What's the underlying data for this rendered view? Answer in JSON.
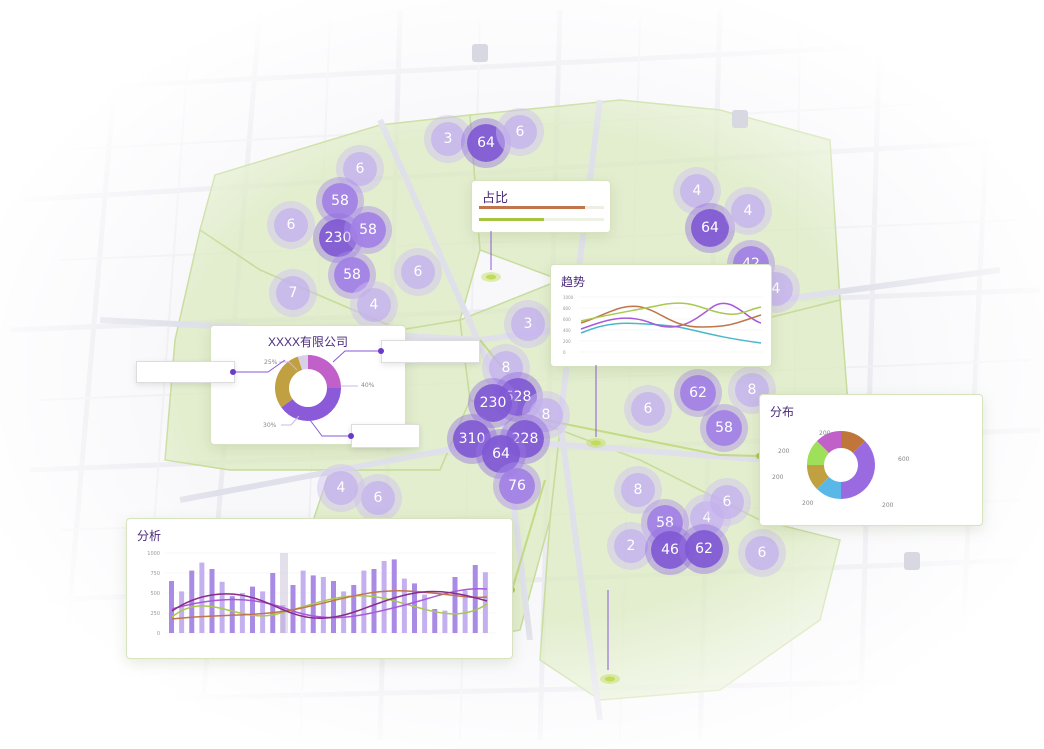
{
  "map": {
    "clusters": [
      {
        "label": "3",
        "size": "sm"
      },
      {
        "label": "64",
        "size": "lg"
      },
      {
        "label": "6",
        "size": "sm"
      },
      {
        "label": "6",
        "size": "sm"
      },
      {
        "label": "58",
        "size": "md"
      },
      {
        "label": "6",
        "size": "sm"
      },
      {
        "label": "230",
        "size": "lg"
      },
      {
        "label": "58",
        "size": "md"
      },
      {
        "label": "58",
        "size": "md"
      },
      {
        "label": "6",
        "size": "sm"
      },
      {
        "label": "7",
        "size": "sm"
      },
      {
        "label": "4",
        "size": "sm"
      },
      {
        "label": "4",
        "size": "sm"
      },
      {
        "label": "64",
        "size": "lg"
      },
      {
        "label": "4",
        "size": "sm"
      },
      {
        "label": "42",
        "size": "md"
      },
      {
        "label": "4",
        "size": "sm"
      },
      {
        "label": "3",
        "size": "sm"
      },
      {
        "label": "8",
        "size": "sm"
      },
      {
        "label": "628",
        "size": "lg"
      },
      {
        "label": "230",
        "size": "lg"
      },
      {
        "label": "8",
        "size": "sm"
      },
      {
        "label": "310",
        "size": "lg"
      },
      {
        "label": "228",
        "size": "lg"
      },
      {
        "label": "64",
        "size": "lg"
      },
      {
        "label": "76",
        "size": "md"
      },
      {
        "label": "62",
        "size": "md"
      },
      {
        "label": "8",
        "size": "sm"
      },
      {
        "label": "6",
        "size": "sm"
      },
      {
        "label": "58",
        "size": "md"
      },
      {
        "label": "4",
        "size": "sm"
      },
      {
        "label": "6",
        "size": "sm"
      },
      {
        "label": "8",
        "size": "sm"
      },
      {
        "label": "6",
        "size": "sm"
      },
      {
        "label": "4",
        "size": "sm"
      },
      {
        "label": "58",
        "size": "md"
      },
      {
        "label": "2",
        "size": "sm"
      },
      {
        "label": "46",
        "size": "lg"
      },
      {
        "label": "62",
        "size": "lg"
      },
      {
        "label": "6",
        "size": "sm"
      }
    ],
    "markers": [
      "pin",
      "pin",
      "pin"
    ]
  },
  "colors": {
    "accent": "#8a5ad8",
    "zone": "#dcebc0",
    "road": "#e8e8ee",
    "green": "#a8c84e"
  },
  "ratio_card": {
    "title": "占比",
    "bars": [
      {
        "value": 0.85,
        "color": "#c0764a"
      },
      {
        "value": 0.52,
        "color": "#a8c43c"
      }
    ]
  },
  "trend_card": {
    "title": "趋势",
    "yticks": [
      "1000",
      "800",
      "600",
      "400",
      "200",
      "0"
    ],
    "series_colors": [
      "#a85ad8",
      "#c0764a",
      "#a8c84e",
      "#4ab8c8"
    ]
  },
  "company_card": {
    "title": "XXXX有限公司",
    "labels": [
      "25%",
      "40%",
      "30%"
    ],
    "slices": [
      {
        "value": 25,
        "color": "#c060c8"
      },
      {
        "value": 40,
        "color": "#8a5ad8"
      },
      {
        "value": 30,
        "color": "#c0a040"
      },
      {
        "value": 5,
        "color": "#d8d0e8"
      }
    ]
  },
  "dist_card": {
    "title": "分布",
    "labels": [
      "200",
      "200",
      "200",
      "200",
      "600",
      "200"
    ],
    "slices": [
      {
        "value": 200,
        "color": "#c0763a"
      },
      {
        "value": 600,
        "color": "#9a6ae0"
      },
      {
        "value": 200,
        "color": "#5ab8e8"
      },
      {
        "value": 200,
        "color": "#c0a040"
      },
      {
        "value": 200,
        "color": "#9ee05a"
      },
      {
        "value": 200,
        "color": "#c060c8"
      }
    ]
  },
  "analysis_card": {
    "title": "分析",
    "yticks": [
      "1000",
      "750",
      "500",
      "250",
      "0"
    ],
    "bars": [
      650,
      520,
      780,
      880,
      800,
      640,
      460,
      500,
      580,
      520,
      750,
      350,
      600,
      780,
      720,
      700,
      650,
      520,
      600,
      780,
      800,
      900,
      920,
      680,
      620,
      480,
      300,
      280,
      700,
      530,
      850,
      760
    ]
  }
}
